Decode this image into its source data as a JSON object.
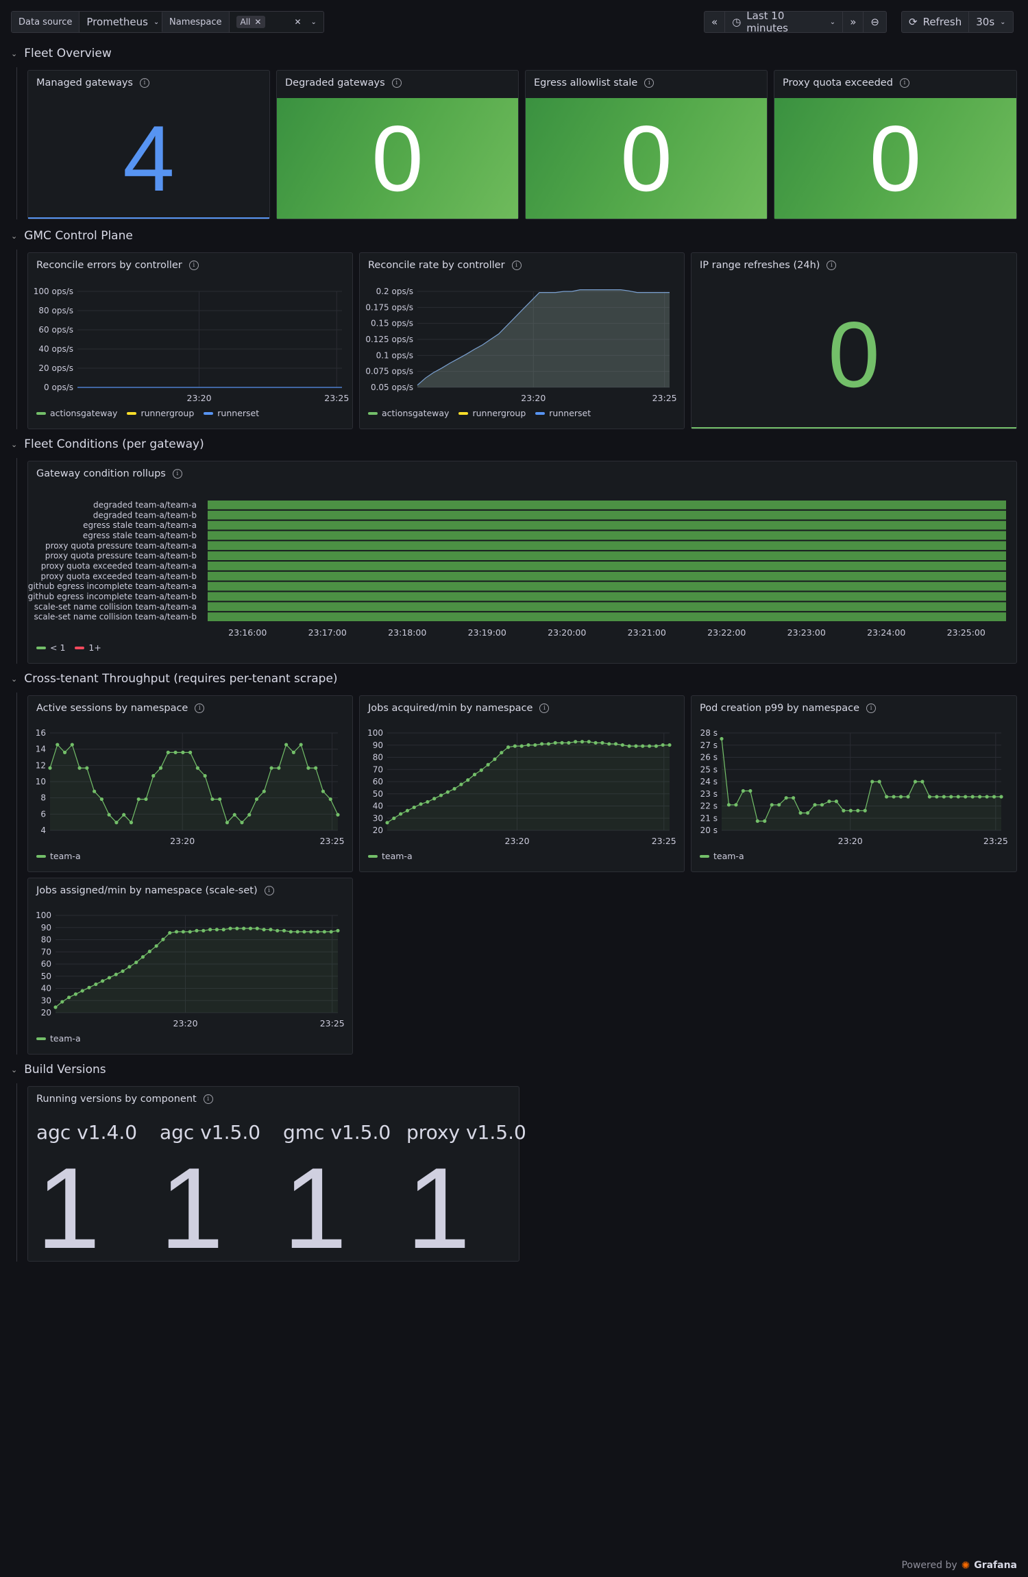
{
  "toolbar": {
    "datasource_label": "Data source",
    "datasource_value": "Prometheus",
    "namespace_label": "Namespace",
    "namespace_chip": "All",
    "time_range": "Last 10 minutes",
    "refresh_label": "Refresh",
    "refresh_interval": "30s"
  },
  "rows": {
    "fleet": "Fleet Overview",
    "gmc": "GMC Control Plane",
    "conditions": "Fleet Conditions (per gateway)",
    "throughput": "Cross-tenant Throughput (requires per-tenant scrape)",
    "build": "Build Versions"
  },
  "stats": {
    "managed": {
      "title": "Managed gateways",
      "value": "4",
      "color": "#5794f2"
    },
    "degraded": {
      "title": "Degraded gateways",
      "value": "0"
    },
    "egress": {
      "title": "Egress allowlist stale",
      "value": "0"
    },
    "proxy": {
      "title": "Proxy quota exceeded",
      "value": "0"
    },
    "ip": {
      "title": "IP range refreshes (24h)",
      "value": "0",
      "color": "#73bf69"
    }
  },
  "legend_colors": {
    "actionsgateway": "#73bf69",
    "runnergroup": "#fade2a",
    "runnerset": "#5794f2",
    "lt1": "#73bf69",
    "ge1": "#f2495c"
  },
  "chart_data": [
    {
      "id": "reconcile_errors",
      "type": "line",
      "title": "Reconcile errors by controller",
      "y_ticks": [
        "100 ops/s",
        "80 ops/s",
        "60 ops/s",
        "40 ops/s",
        "20 ops/s",
        "0 ops/s"
      ],
      "ylim": [
        0,
        100
      ],
      "x_ticks": [
        "23:20",
        "23:25"
      ],
      "legend": [
        "actionsgateway",
        "runnergroup",
        "runnerset"
      ],
      "series": [
        {
          "name": "runnerset",
          "values": [
            0,
            0
          ]
        }
      ]
    },
    {
      "id": "reconcile_rate",
      "type": "area",
      "title": "Reconcile rate by controller",
      "y_ticks": [
        "0.2 ops/s",
        "0.175 ops/s",
        "0.15 ops/s",
        "0.125 ops/s",
        "0.1 ops/s",
        "0.075 ops/s",
        "0.05 ops/s"
      ],
      "ylim": [
        0.033,
        0.207
      ],
      "x_ticks": [
        "23:20",
        "23:25"
      ],
      "legend": [
        "actionsgateway",
        "runnergroup",
        "runnerset"
      ],
      "series": [
        {
          "name": "runnerset",
          "values": [
            0.037,
            0.05,
            0.06,
            0.068,
            0.077,
            0.085,
            0.093,
            0.102,
            0.11,
            0.12,
            0.13,
            0.145,
            0.16,
            0.175,
            0.19,
            0.205,
            0.205,
            0.205,
            0.207,
            0.207,
            0.21,
            0.21,
            0.21,
            0.21,
            0.21,
            0.21,
            0.208,
            0.205,
            0.205,
            0.205,
            0.205,
            0.205
          ]
        }
      ]
    },
    {
      "id": "condition_rollups",
      "type": "bar",
      "title": "Gateway condition rollups",
      "categories": [
        "degraded team-a/team-a",
        "degraded team-a/team-b",
        "egress stale team-a/team-a",
        "egress stale team-a/team-b",
        "proxy quota pressure team-a/team-a",
        "proxy quota pressure team-a/team-b",
        "proxy quota exceeded team-a/team-a",
        "proxy quota exceeded team-a/team-b",
        "github egress incomplete team-a/team-a",
        "github egress incomplete team-a/team-b",
        "scale-set name collision team-a/team-a",
        "scale-set name collision team-a/team-b"
      ],
      "x_ticks": [
        "23:16:00",
        "23:17:00",
        "23:18:00",
        "23:19:00",
        "23:20:00",
        "23:21:00",
        "23:22:00",
        "23:23:00",
        "23:24:00",
        "23:25:00"
      ],
      "legend": [
        "< 1",
        "1+"
      ]
    },
    {
      "id": "active_sessions",
      "type": "line",
      "title": "Active sessions by namespace",
      "y_ticks": [
        "16",
        "14",
        "12",
        "10",
        "8",
        "6",
        "4"
      ],
      "ylim": [
        4,
        16.5
      ],
      "x_ticks": [
        "23:20",
        "23:25"
      ],
      "legend": [
        "team-a"
      ],
      "series": [
        {
          "name": "team-a",
          "values": [
            12,
            15,
            14,
            15,
            12,
            12,
            9,
            8,
            6,
            5,
            6,
            5,
            8,
            8,
            11,
            12,
            14,
            14,
            14,
            14,
            12,
            11,
            8,
            8,
            5,
            6,
            5,
            6,
            8,
            9,
            12,
            12,
            15,
            14,
            15,
            12,
            12,
            9,
            8,
            6
          ]
        }
      ]
    },
    {
      "id": "jobs_acquired",
      "type": "line",
      "title": "Jobs acquired/min by namespace",
      "y_ticks": [
        "100",
        "90",
        "80",
        "70",
        "60",
        "50",
        "40",
        "30",
        "20"
      ],
      "ylim": [
        15,
        104
      ],
      "x_ticks": [
        "23:20",
        "23:25"
      ],
      "legend": [
        "team-a"
      ],
      "series": [
        {
          "name": "team-a",
          "values": [
            22,
            26,
            30,
            33,
            36,
            39,
            41,
            44,
            47,
            50,
            53,
            57,
            61,
            66,
            70,
            75,
            80,
            86,
            91,
            92,
            92,
            93,
            93,
            94,
            94,
            95,
            95,
            95,
            96,
            96,
            96,
            95,
            95,
            94,
            94,
            93,
            92,
            92,
            92,
            92,
            92,
            93,
            93
          ]
        }
      ]
    },
    {
      "id": "pod_creation",
      "type": "line",
      "title": "Pod creation p99 by namespace",
      "y_ticks": [
        "28 s",
        "27 s",
        "26 s",
        "25 s",
        "24 s",
        "23 s",
        "22 s",
        "21 s",
        "20 s"
      ],
      "ylim": [
        19.8,
        28.2
      ],
      "x_ticks": [
        "23:20",
        "23:25"
      ],
      "legend": [
        "team-a"
      ],
      "series": [
        {
          "name": "team-a",
          "values": [
            27.7,
            22,
            22,
            23.2,
            23.2,
            20.6,
            20.6,
            22,
            22,
            22.6,
            22.6,
            21.3,
            21.3,
            22,
            22,
            22.3,
            22.3,
            21.5,
            21.5,
            21.5,
            21.5,
            24,
            24,
            22.7,
            22.7,
            22.7,
            22.7,
            24,
            24,
            22.7,
            22.7,
            22.7,
            22.7,
            22.7,
            22.7,
            22.7,
            22.7,
            22.7,
            22.7,
            22.7
          ]
        }
      ]
    },
    {
      "id": "jobs_assigned",
      "type": "line",
      "title": "Jobs assigned/min by namespace (scale-set)",
      "y_ticks": [
        "100",
        "90",
        "80",
        "70",
        "60",
        "50",
        "40",
        "30",
        "20"
      ],
      "ylim": [
        15,
        104
      ],
      "x_ticks": [
        "23:20",
        "23:25"
      ],
      "legend": [
        "team-a"
      ],
      "series": [
        {
          "name": "team-a",
          "values": [
            20,
            25,
            29,
            32,
            35,
            38,
            41,
            44,
            47,
            50,
            53,
            57,
            61,
            66,
            71,
            76,
            82,
            88,
            89,
            89,
            89,
            90,
            90,
            91,
            91,
            91,
            92,
            92,
            92,
            92,
            92,
            91,
            91,
            90,
            90,
            89,
            89,
            89,
            89,
            89,
            89,
            89,
            90
          ]
        }
      ]
    }
  ],
  "versions": {
    "title": "Running versions by component",
    "items": [
      {
        "label": "agc v1.4.0",
        "value": "1"
      },
      {
        "label": "agc v1.5.0",
        "value": "1"
      },
      {
        "label": "gmc v1.5.0",
        "value": "1"
      },
      {
        "label": "proxy v1.5.0",
        "value": "1"
      }
    ]
  },
  "footer": {
    "powered": "Powered by",
    "brand": "Grafana"
  }
}
